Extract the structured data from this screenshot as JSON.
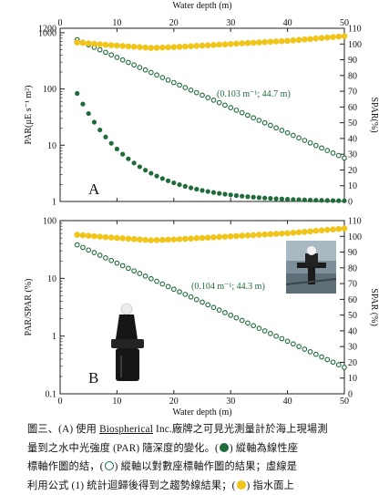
{
  "chart_data": [
    {
      "panel": "A",
      "type": "scatter",
      "xlabel_top": "Water depth (m)",
      "ylabel_left": "PAR(µE s⁻¹ m²)",
      "ylabel_right": "SPAR(%)",
      "xlim": [
        0,
        50
      ],
      "ylim_left": [
        1,
        1200
      ],
      "left_scale": "log",
      "ylim_right": [
        0,
        110
      ],
      "x_ticks": [
        0,
        10,
        20,
        30,
        40,
        50
      ],
      "left_ticks": [
        "1",
        "10",
        "100",
        "1000",
        "1200"
      ],
      "right_ticks": [
        0,
        10,
        20,
        30,
        40,
        50,
        60,
        70,
        80,
        90,
        100,
        110
      ],
      "grid": false,
      "annotation": "(0.103 m⁻¹; 44.7 m)",
      "series": [
        {
          "marker": "filled-green",
          "axis": "left-linear",
          "x_range": [
            3,
            50
          ],
          "a": 1020,
          "k": 0.103,
          "note": "PAR linear-axis plot"
        },
        {
          "marker": "open-green",
          "axis": "left-log",
          "x_range": [
            3,
            50
          ],
          "a": 1020,
          "k": 0.103,
          "note": "PAR log-axis plot"
        },
        {
          "marker": "yellow",
          "axis": "right",
          "x": [
            3,
            8,
            12,
            16,
            20,
            25,
            30,
            35,
            40,
            45,
            50
          ],
          "y": [
            101,
            99.5,
            98.5,
            97.5,
            98,
            99,
            100,
            101,
            102,
            103.5,
            105
          ]
        }
      ]
    },
    {
      "panel": "B",
      "type": "scatter",
      "xlabel_bottom": "Water depth (m)",
      "ylabel_left": "PAR/SPAR (%)",
      "ylabel_right": "SPAR (%)",
      "xlim": [
        0,
        50
      ],
      "ylim_left": [
        0.1,
        100
      ],
      "left_scale": "log",
      "ylim_right": [
        0,
        110
      ],
      "x_ticks": [
        0,
        10,
        20,
        30,
        40,
        50
      ],
      "left_ticks": [
        "0.1",
        "1",
        "10",
        "100"
      ],
      "right_ticks": [
        0,
        10,
        20,
        30,
        40,
        50,
        60,
        70,
        80,
        90,
        100,
        110
      ],
      "grid": false,
      "annotation": "(0.104 m⁻¹; 44.3 m)",
      "series": [
        {
          "marker": "open-green",
          "axis": "left-log",
          "x_range": [
            3,
            50
          ],
          "a": 52,
          "k": 0.104
        },
        {
          "marker": "yellow",
          "axis": "right",
          "x": [
            3,
            8,
            12,
            16,
            20,
            25,
            30,
            35,
            40,
            45,
            50
          ],
          "y": [
            101,
            99.5,
            98.5,
            97.5,
            98,
            99,
            100,
            101,
            102,
            103.5,
            105
          ]
        }
      ]
    }
  ],
  "panel_letters": {
    "a": "A",
    "b": "B"
  },
  "caption": {
    "line1_a": "圖三、(A) 使用 ",
    "line1_brand": "Biospherical",
    "line1_b": " Inc.廠牌之可見光測量計於海上現場測",
    "line2_a": "量到之水中光強度 (PAR) 隨深度的變化。(",
    "line2_b": ") 縱軸為線性座",
    "line3_a": "標軸作圖的結，(",
    "line3_b": ") 縱軸以對數座標軸作圖的結果；虛線是",
    "line4_a": "利用公式 (1) 統計迴歸後得到之趨勢線結果；(",
    "line4_b": ") 指水面上"
  },
  "colors": {
    "green": "#1f6b3a",
    "yellow": "#f0c419",
    "axis": "#222222"
  },
  "icons": {
    "sensor_photo_top": "underwater-light-sensor-photo",
    "sensor_photo_side": "light-sensor-probe-photo"
  }
}
